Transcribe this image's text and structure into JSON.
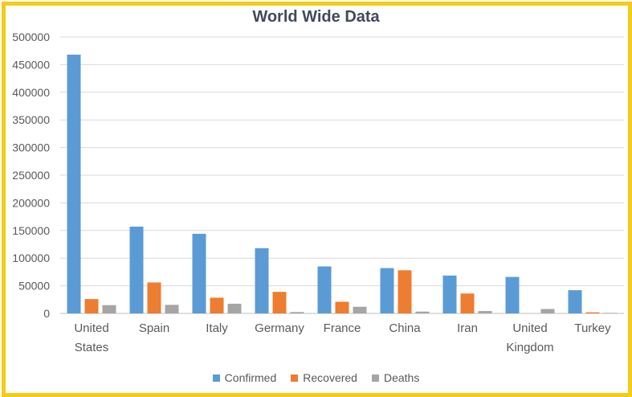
{
  "chart_data": {
    "type": "bar",
    "title": "World Wide Data",
    "xlabel": "",
    "ylabel": "",
    "ylim": [
      0,
      500000
    ],
    "yticks": [
      "0",
      "50000",
      "100000",
      "150000",
      "200000",
      "250000",
      "300000",
      "350000",
      "400000",
      "450000",
      "500000"
    ],
    "grid": true,
    "legend_position": "bottom",
    "categories": [
      [
        "United",
        "States"
      ],
      [
        "Spain"
      ],
      [
        "Italy"
      ],
      [
        "Germany"
      ],
      [
        "France"
      ],
      [
        "China"
      ],
      [
        "Iran"
      ],
      [
        "United",
        "Kingdom"
      ],
      [
        "Turkey"
      ]
    ],
    "series": [
      {
        "name": "Confirmed",
        "color": "#5b9bd5",
        "values": [
          468000,
          157000,
          144000,
          118000,
          85000,
          82000,
          68500,
          66000,
          42000
        ]
      },
      {
        "name": "Recovered",
        "color": "#ed7d31",
        "values": [
          26000,
          56000,
          28500,
          39000,
          21000,
          78000,
          36000,
          0,
          2000
        ]
      },
      {
        "name": "Deaths",
        "color": "#a5a5a5",
        "values": [
          15000,
          15500,
          17500,
          2500,
          12000,
          3300,
          4300,
          8000,
          1000
        ]
      }
    ]
  }
}
